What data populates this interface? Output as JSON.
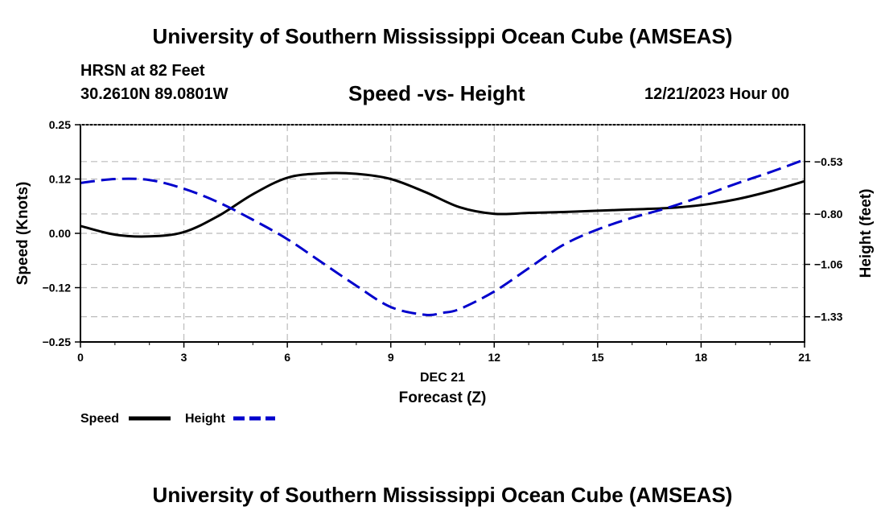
{
  "page": {
    "top_title": "University of Southern Mississippi Ocean Cube (AMSEAS)",
    "bottom_title": "University of Southern Mississippi Ocean Cube (AMSEAS)",
    "station": "HRSN at 82 Feet",
    "location": "30.2610N  89.0801W",
    "datetime": "12/21/2023 Hour 00"
  },
  "colors": {
    "speed": "#000000",
    "height": "#0000cc",
    "grid": "#bbbbbb"
  },
  "chart_data": {
    "type": "line",
    "title": "Speed -vs- Height",
    "xlabel": "Forecast (Z)",
    "xdate_label": "DEC 21",
    "ylabel_left": "Speed (Knots)",
    "ylabel_right": "Height (feet)",
    "xlim": [
      0,
      21
    ],
    "ylim_left": [
      -0.25,
      0.25
    ],
    "ylim_right": [
      -1.46,
      -0.34
    ],
    "x_ticks": [
      "0",
      "3",
      "6",
      "9",
      "12",
      "15",
      "18",
      "21"
    ],
    "x_tick_values": [
      0,
      3,
      6,
      9,
      12,
      15,
      18,
      21
    ],
    "y_ticks_left": [
      "0.25",
      "0.12",
      "0.00",
      "−0.12",
      "−0.25"
    ],
    "y_tick_values_left": [
      0.25,
      0.125,
      0.0,
      -0.125,
      -0.25
    ],
    "y_ticks_right": [
      "−0.53",
      "−0.80",
      "−1.06",
      "−1.33"
    ],
    "y_tick_values_right": [
      -0.53,
      -0.8,
      -1.06,
      -1.33
    ],
    "legend": [
      {
        "name": "Speed",
        "style": "solid"
      },
      {
        "name": "Height",
        "style": "dashed"
      }
    ],
    "series": [
      {
        "name": "Speed",
        "axis": "left",
        "x": [
          0,
          1,
          2,
          3,
          4,
          5,
          6,
          7,
          8,
          9,
          10,
          11,
          12,
          13,
          14,
          15,
          16,
          17,
          18,
          19,
          20,
          21
        ],
        "values": [
          0.017,
          -0.003,
          -0.007,
          0.003,
          0.04,
          0.09,
          0.128,
          0.138,
          0.137,
          0.125,
          0.095,
          0.06,
          0.045,
          0.047,
          0.049,
          0.052,
          0.055,
          0.058,
          0.065,
          0.078,
          0.097,
          0.12
        ]
      },
      {
        "name": "Height",
        "axis": "right",
        "x": [
          0,
          1,
          2,
          3,
          4,
          5,
          6,
          7,
          8,
          9,
          10,
          10.5,
          11,
          12,
          13,
          14,
          15,
          16,
          17,
          18,
          19,
          20,
          21
        ],
        "values": [
          -0.64,
          -0.62,
          -0.625,
          -0.67,
          -0.74,
          -0.83,
          -0.93,
          -1.05,
          -1.17,
          -1.28,
          -1.32,
          -1.31,
          -1.29,
          -1.2,
          -1.08,
          -0.96,
          -0.88,
          -0.82,
          -0.77,
          -0.71,
          -0.645,
          -0.585,
          -0.52
        ]
      }
    ]
  }
}
